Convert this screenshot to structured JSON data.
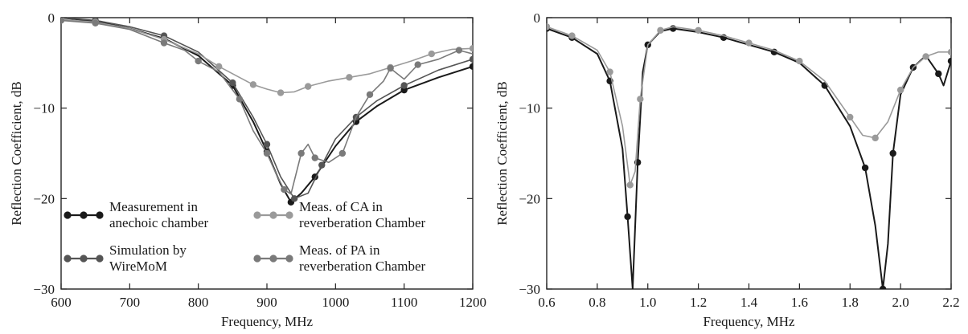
{
  "chart_data": [
    {
      "type": "line",
      "title": "",
      "xlabel": "Frequency,  MHz",
      "ylabel": "Reflection  Coefficient,  dB",
      "xlim": [
        600,
        1200
      ],
      "ylim": [
        -30,
        0
      ],
      "xticks": [
        "600",
        "700",
        "800",
        "900",
        "1000",
        "1100",
        "1200"
      ],
      "yticks": [
        "0",
        "−10",
        "−20",
        "−30"
      ],
      "grid": false,
      "legend_position": "bottom",
      "series": [
        {
          "name": "Measurement in anechoic chamber",
          "color": "#1a1a1a",
          "marker": "dot",
          "x": [
            600,
            650,
            700,
            750,
            800,
            850,
            880,
            900,
            920,
            935,
            950,
            970,
            1000,
            1030,
            1060,
            1100,
            1150,
            1200
          ],
          "y": [
            0,
            -0.4,
            -1.2,
            -2.3,
            -4.2,
            -7.5,
            -11.5,
            -14.8,
            -18.4,
            -20.4,
            -19.4,
            -17.6,
            -14.2,
            -11.5,
            -9.8,
            -8.0,
            -6.6,
            -5.4
          ]
        },
        {
          "name": "Simulation by WireMoM",
          "color": "#555555",
          "marker": "dot",
          "x": [
            600,
            650,
            700,
            750,
            800,
            850,
            880,
            900,
            920,
            940,
            960,
            980,
            1000,
            1030,
            1060,
            1100,
            1150,
            1200
          ],
          "y": [
            0,
            -0.3,
            -1.0,
            -2.0,
            -3.8,
            -7.2,
            -11.0,
            -14.0,
            -17.6,
            -20.0,
            -19.4,
            -16.3,
            -13.4,
            -11.0,
            -9.2,
            -7.5,
            -5.8,
            -4.6
          ]
        },
        {
          "name": "Meas. of CA in reverberation Chamber",
          "color": "#9a9a9a",
          "marker": "dot",
          "x": [
            600,
            650,
            700,
            750,
            800,
            830,
            860,
            880,
            900,
            920,
            940,
            960,
            990,
            1020,
            1050,
            1080,
            1110,
            1140,
            1170,
            1200
          ],
          "y": [
            -0.2,
            -0.5,
            -1.2,
            -2.4,
            -4.0,
            -5.4,
            -6.6,
            -7.4,
            -7.9,
            -8.3,
            -8.2,
            -7.6,
            -7.0,
            -6.6,
            -6.2,
            -5.5,
            -4.8,
            -4.0,
            -3.5,
            -3.4
          ]
        },
        {
          "name": "Meas. of PA in reverberation Chamber",
          "color": "#7a7a7a",
          "marker": "dot",
          "x": [
            600,
            650,
            700,
            750,
            780,
            800,
            830,
            860,
            880,
            900,
            915,
            925,
            935,
            950,
            960,
            970,
            990,
            1010,
            1030,
            1050,
            1070,
            1080,
            1100,
            1120,
            1150,
            1180,
            1200
          ],
          "y": [
            -0.3,
            -0.6,
            -1.3,
            -2.8,
            -3.6,
            -4.8,
            -6.0,
            -9.0,
            -12.5,
            -15.0,
            -17.5,
            -19.0,
            -19.5,
            -15.0,
            -14.0,
            -15.5,
            -16.0,
            -15.0,
            -11.0,
            -8.5,
            -7.0,
            -5.6,
            -6.8,
            -5.2,
            -4.6,
            -3.6,
            -4.0
          ]
        }
      ],
      "legend": [
        {
          "label_line1": "Measurement  in",
          "label_line2": "anechoic  chamber",
          "color": "#1a1a1a"
        },
        {
          "label_line1": "Meas.  of  CA  in",
          "label_line2": "reverberation  Chamber",
          "color": "#9a9a9a"
        },
        {
          "label_line1": "Simulation  by",
          "label_line2": "WireMoM",
          "color": "#555555"
        },
        {
          "label_line1": "Meas.  of  PA  in",
          "label_line2": "reverberation  Chamber",
          "color": "#7a7a7a"
        }
      ]
    },
    {
      "type": "line",
      "title": "",
      "xlabel": "Frequency,  MHz",
      "ylabel": "Reflection  Coefficient,  dB",
      "xlim": [
        0.6,
        2.2
      ],
      "ylim": [
        -30,
        0
      ],
      "xticks": [
        "0.6",
        "0.8",
        "1.0",
        "1.2",
        "1.4",
        "1.6",
        "1.8",
        "2.0",
        "2.2"
      ],
      "yticks": [
        "0",
        "−10",
        "−20",
        "−30"
      ],
      "grid": false,
      "series": [
        {
          "color": "#1a1a1a",
          "marker": "dot",
          "x": [
            0.6,
            0.7,
            0.8,
            0.85,
            0.9,
            0.92,
            0.94,
            0.96,
            0.98,
            1.0,
            1.05,
            1.1,
            1.2,
            1.3,
            1.4,
            1.5,
            1.6,
            1.7,
            1.8,
            1.86,
            1.9,
            1.93,
            1.95,
            1.97,
            2.0,
            2.05,
            2.1,
            2.15,
            2.17,
            2.2
          ],
          "y": [
            -1.2,
            -2.2,
            -4.0,
            -7.0,
            -14.5,
            -22.0,
            -30.0,
            -16.0,
            -6.0,
            -3.0,
            -1.5,
            -1.2,
            -1.6,
            -2.2,
            -3.0,
            -3.8,
            -5.0,
            -7.5,
            -12.0,
            -16.6,
            -23.0,
            -30.0,
            -25.0,
            -15.0,
            -8.5,
            -5.5,
            -4.2,
            -6.2,
            -7.5,
            -4.8
          ]
        },
        {
          "color": "#9a9a9a",
          "marker": "dot",
          "x": [
            0.6,
            0.7,
            0.8,
            0.85,
            0.9,
            0.93,
            0.95,
            0.97,
            1.0,
            1.05,
            1.1,
            1.2,
            1.3,
            1.4,
            1.5,
            1.6,
            1.7,
            1.8,
            1.85,
            1.9,
            1.95,
            2.0,
            2.05,
            2.1,
            2.15,
            2.2
          ],
          "y": [
            -1.0,
            -2.0,
            -3.6,
            -6.0,
            -12.0,
            -18.5,
            -17.0,
            -9.0,
            -3.0,
            -1.4,
            -1.0,
            -1.4,
            -2.0,
            -2.8,
            -3.6,
            -4.8,
            -7.0,
            -11.0,
            -13.0,
            -13.3,
            -11.5,
            -8.0,
            -5.5,
            -4.3,
            -3.8,
            -3.8
          ]
        }
      ]
    }
  ]
}
